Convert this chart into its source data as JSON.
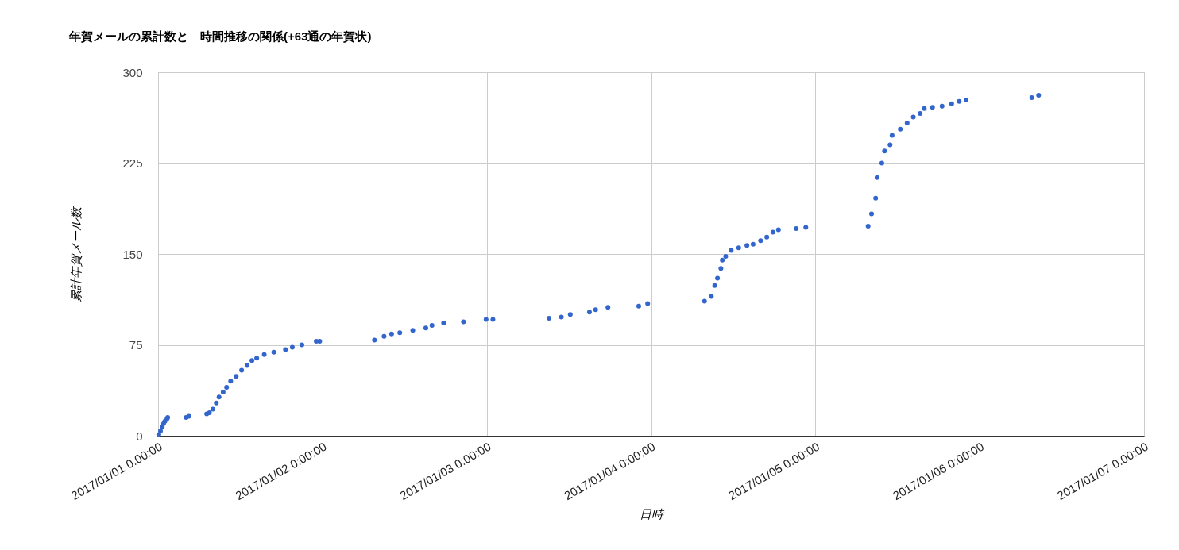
{
  "chart_data": {
    "type": "scatter",
    "title": "年賀メールの累計数と　時間推移の関係(+63通の年賀状)",
    "xlabel": "日時",
    "ylabel": "累計年賀メール数",
    "x": [
      "2017-01-01T00:06",
      "2017-01-01T00:21",
      "2017-01-01T00:36",
      "2017-01-01T00:48",
      "2017-01-01T01:00",
      "2017-01-01T01:18",
      "2017-01-01T01:24",
      "2017-01-01T04:06",
      "2017-01-01T04:30",
      "2017-01-01T07:06",
      "2017-01-01T07:30",
      "2017-01-01T08:00",
      "2017-01-01T08:30",
      "2017-01-01T08:54",
      "2017-01-01T09:30",
      "2017-01-01T10:00",
      "2017-01-01T10:36",
      "2017-01-01T11:24",
      "2017-01-01T12:12",
      "2017-01-01T13:00",
      "2017-01-01T13:42",
      "2017-01-01T14:24",
      "2017-01-01T15:30",
      "2017-01-01T16:54",
      "2017-01-01T18:36",
      "2017-01-01T19:36",
      "2017-01-01T21:00",
      "2017-01-01T23:06",
      "2017-01-01T23:36",
      "2017-01-02T07:36",
      "2017-01-02T09:00",
      "2017-01-02T10:06",
      "2017-01-02T11:18",
      "2017-01-02T13:12",
      "2017-01-02T15:06",
      "2017-01-02T16:00",
      "2017-01-02T17:42",
      "2017-01-02T20:36",
      "2017-01-02T23:54",
      "2017-01-03T00:54",
      "2017-01-03T09:06",
      "2017-01-03T10:54",
      "2017-01-03T12:12",
      "2017-01-03T15:00",
      "2017-01-03T15:54",
      "2017-01-03T17:42",
      "2017-01-03T22:12",
      "2017-01-03T23:30",
      "2017-01-04T07:48",
      "2017-01-04T08:48",
      "2017-01-04T09:18",
      "2017-01-04T09:42",
      "2017-01-04T10:12",
      "2017-01-04T10:24",
      "2017-01-04T10:54",
      "2017-01-04T11:42",
      "2017-01-04T12:48",
      "2017-01-04T14:00",
      "2017-01-04T14:54",
      "2017-01-04T16:00",
      "2017-01-04T16:54",
      "2017-01-04T17:48",
      "2017-01-04T18:36",
      "2017-01-04T21:12",
      "2017-01-04T22:36",
      "2017-01-05T07:42",
      "2017-01-05T08:12",
      "2017-01-05T08:48",
      "2017-01-05T09:00",
      "2017-01-05T09:42",
      "2017-01-05T10:06",
      "2017-01-05T10:54",
      "2017-01-05T11:12",
      "2017-01-05T12:24",
      "2017-01-05T13:24",
      "2017-01-05T14:18",
      "2017-01-05T15:18",
      "2017-01-05T15:54",
      "2017-01-05T17:06",
      "2017-01-05T18:30",
      "2017-01-05T19:54",
      "2017-01-05T21:00",
      "2017-01-05T22:00",
      "2017-01-06T07:36",
      "2017-01-06T08:36"
    ],
    "series": [
      {
        "color": "#3366cc",
        "values": [
          1,
          4,
          7,
          10,
          12,
          14,
          15,
          15,
          16,
          18,
          19,
          22,
          27,
          32,
          36,
          40,
          45,
          49,
          54,
          58,
          62,
          64,
          67,
          69,
          71,
          73,
          75,
          78,
          78,
          79,
          82,
          84,
          85,
          87,
          89,
          91,
          93,
          94,
          96,
          96,
          97,
          98,
          100,
          102,
          104,
          106,
          107,
          109,
          111,
          115,
          124,
          130,
          138,
          145,
          148,
          153,
          155,
          157,
          158,
          161,
          164,
          168,
          170,
          171,
          172,
          173,
          183,
          196,
          213,
          225,
          235,
          240,
          248,
          253,
          258,
          263,
          266,
          270,
          271,
          272,
          274,
          276,
          277,
          279,
          281
        ]
      }
    ],
    "xlim": [
      "2017-01-01T00:00",
      "2017-01-07T00:00"
    ],
    "xticks": [
      {
        "value": "2017-01-01T00:00",
        "label": "2017/01/01 0:00:00"
      },
      {
        "value": "2017-01-02T00:00",
        "label": "2017/01/02 0:00:00"
      },
      {
        "value": "2017-01-03T00:00",
        "label": "2017/01/03 0:00:00"
      },
      {
        "value": "2017-01-04T00:00",
        "label": "2017/01/04 0:00:00"
      },
      {
        "value": "2017-01-05T00:00",
        "label": "2017/01/05 0:00:00"
      },
      {
        "value": "2017-01-06T00:00",
        "label": "2017/01/06 0:00:00"
      },
      {
        "value": "2017-01-07T00:00",
        "label": "2017/01/07 0:00:00"
      }
    ],
    "ylim": [
      0,
      300
    ],
    "yticks": [
      0,
      75,
      150,
      225,
      300
    ],
    "grid": true,
    "marker": "circle"
  }
}
